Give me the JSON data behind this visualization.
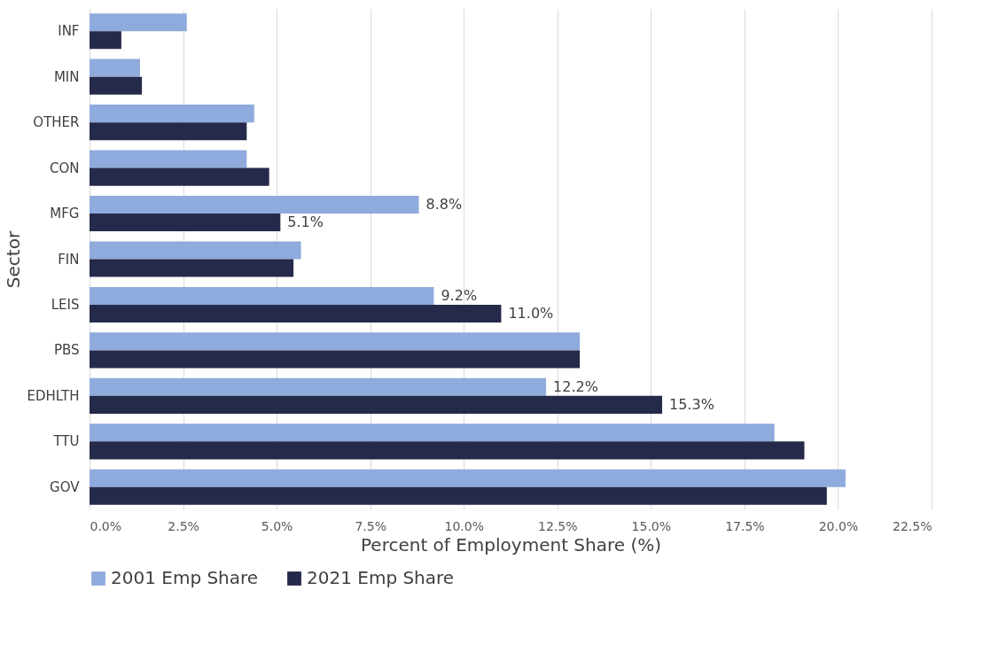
{
  "chart_data": {
    "type": "bar",
    "orientation": "horizontal",
    "xlabel": "Percent of Employment Share (%)",
    "ylabel": "Sector",
    "categories": [
      "INF",
      "MIN",
      "OTHER",
      "CON",
      "MFG",
      "FIN",
      "LEIS",
      "PBS",
      "EDHLTH",
      "TTU",
      "GOV"
    ],
    "series": [
      {
        "name": "2001 Emp Share",
        "color": "#8faadc",
        "values": [
          2.6,
          1.35,
          4.4,
          4.2,
          8.8,
          5.65,
          9.2,
          13.1,
          12.2,
          18.3,
          20.2
        ],
        "value_labels": [
          null,
          null,
          null,
          null,
          "8.8%",
          null,
          "9.2%",
          null,
          "12.2%",
          null,
          null
        ]
      },
      {
        "name": "2021 Emp Share",
        "color": "#262a4a",
        "values": [
          0.85,
          1.4,
          4.2,
          4.8,
          5.1,
          5.45,
          11.0,
          13.1,
          15.3,
          19.1,
          19.7
        ],
        "value_labels": [
          null,
          null,
          null,
          null,
          "5.1%",
          null,
          "11.0%",
          null,
          "15.3%",
          null,
          null
        ]
      }
    ],
    "xlim": [
      0,
      22.5
    ],
    "xticks": [
      {
        "value": 0,
        "label": "0.0%"
      },
      {
        "value": 2.5,
        "label": "2.5%"
      },
      {
        "value": 5,
        "label": "5.0%"
      },
      {
        "value": 7.5,
        "label": "7.5%"
      },
      {
        "value": 10,
        "label": "10.0%"
      },
      {
        "value": 12.5,
        "label": "12.5%"
      },
      {
        "value": 15,
        "label": "15.0%"
      },
      {
        "value": 17.5,
        "label": "17.5%"
      },
      {
        "value": 20,
        "label": "20.0%"
      },
      {
        "value": 22.5,
        "label": "22.5%"
      }
    ],
    "grid": "x",
    "legend": "bottom"
  }
}
